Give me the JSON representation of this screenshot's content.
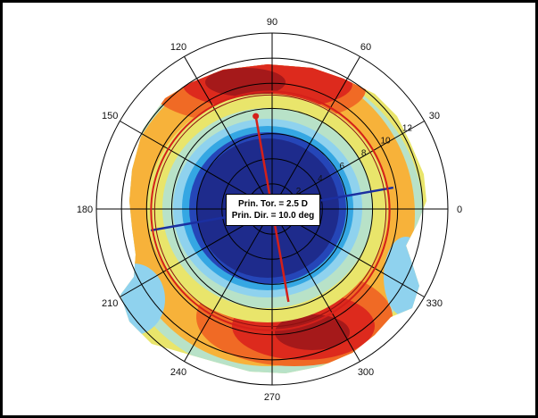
{
  "chart_data": {
    "type": "polar-contour-map",
    "theta_ticks": [
      "0",
      "30",
      "60",
      "90",
      "120",
      "150",
      "180",
      "210",
      "240",
      "270",
      "300",
      "330"
    ],
    "radial_ticks": [
      "2",
      "4",
      "6",
      "8",
      "10",
      "12"
    ],
    "annotation": {
      "line1": "Prin. Tor. = 2.5 D",
      "line2": "Prin. Dir. = 10.0 deg"
    },
    "principal_toricity_D": 2.5,
    "principal_direction_deg": 10.0,
    "colormap": [
      "#1e2b8c",
      "#2546b8",
      "#35a7e3",
      "#8fd2ee",
      "#b8e2c8",
      "#e9e56b",
      "#f7b23a",
      "#f06a25",
      "#dd2a1d",
      "#a5191a"
    ],
    "grid": true
  }
}
